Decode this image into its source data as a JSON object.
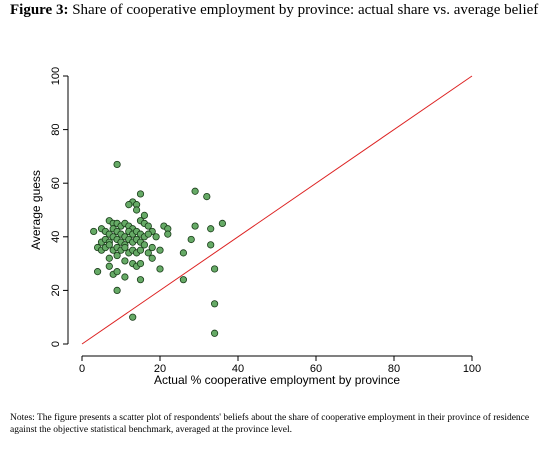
{
  "figure": {
    "label": "Figure 3:",
    "title": "Share of cooperative employment by province: actual share vs. average belief",
    "notes": "Notes: The figure presents a scatter plot of respondents' beliefs about the share of cooperative employment in their province of residence against the objective statistical benchmark, averaged at the province level."
  },
  "chart_data": {
    "type": "scatter",
    "xlabel": "Actual % cooperative employment by province",
    "ylabel": "Average guess",
    "xlim": [
      0,
      100
    ],
    "ylim": [
      0,
      100
    ],
    "x_ticks": [
      "0",
      "20",
      "40",
      "60",
      "80",
      "100"
    ],
    "y_ticks": [
      "0",
      "20",
      "40",
      "60",
      "80",
      "100"
    ],
    "grid": false,
    "point_color": "#66aa66",
    "line_color": "#dd2222",
    "reference_line": {
      "x": [
        0,
        100
      ],
      "y": [
        0,
        100
      ]
    },
    "series": [
      {
        "points": [
          [
            9,
            67
          ],
          [
            15,
            56
          ],
          [
            13,
            53
          ],
          [
            14,
            52
          ],
          [
            12,
            52
          ],
          [
            14,
            50
          ],
          [
            16,
            48
          ],
          [
            29,
            57
          ],
          [
            32,
            55
          ],
          [
            36,
            45
          ],
          [
            33,
            43
          ],
          [
            29,
            44
          ],
          [
            28,
            39
          ],
          [
            33,
            37
          ],
          [
            7,
            46
          ],
          [
            8,
            45
          ],
          [
            9,
            45
          ],
          [
            10,
            44
          ],
          [
            11,
            45
          ],
          [
            12,
            44
          ],
          [
            13,
            43
          ],
          [
            15,
            46
          ],
          [
            16,
            45
          ],
          [
            17,
            44
          ],
          [
            18,
            42
          ],
          [
            21,
            44
          ],
          [
            22,
            43
          ],
          [
            22,
            41
          ],
          [
            3,
            42
          ],
          [
            5,
            43
          ],
          [
            6,
            42
          ],
          [
            7,
            41
          ],
          [
            8,
            43
          ],
          [
            9,
            42
          ],
          [
            10,
            41
          ],
          [
            11,
            40
          ],
          [
            12,
            42
          ],
          [
            13,
            41
          ],
          [
            14,
            42
          ],
          [
            15,
            41
          ],
          [
            16,
            40
          ],
          [
            17,
            41
          ],
          [
            19,
            40
          ],
          [
            5,
            38
          ],
          [
            6,
            39
          ],
          [
            7,
            38
          ],
          [
            8,
            40
          ],
          [
            9,
            39
          ],
          [
            10,
            38
          ],
          [
            11,
            37
          ],
          [
            12,
            39
          ],
          [
            13,
            38
          ],
          [
            14,
            39
          ],
          [
            15,
            38
          ],
          [
            16,
            37
          ],
          [
            18,
            36
          ],
          [
            4,
            36
          ],
          [
            5,
            35
          ],
          [
            6,
            36
          ],
          [
            7,
            37
          ],
          [
            8,
            35
          ],
          [
            9,
            36
          ],
          [
            10,
            35
          ],
          [
            11,
            36
          ],
          [
            12,
            34
          ],
          [
            13,
            35
          ],
          [
            14,
            34
          ],
          [
            15,
            35
          ],
          [
            17,
            34
          ],
          [
            20,
            35
          ],
          [
            7,
            32
          ],
          [
            9,
            33
          ],
          [
            11,
            31
          ],
          [
            13,
            30
          ],
          [
            14,
            29
          ],
          [
            15,
            30
          ],
          [
            18,
            32
          ],
          [
            20,
            28
          ],
          [
            4,
            27
          ],
          [
            7,
            29
          ],
          [
            8,
            26
          ],
          [
            9,
            27
          ],
          [
            11,
            25
          ],
          [
            15,
            24
          ],
          [
            26,
            34
          ],
          [
            26,
            24
          ],
          [
            34,
            28
          ],
          [
            9,
            20
          ],
          [
            13,
            10
          ],
          [
            34,
            15
          ],
          [
            34,
            4
          ]
        ]
      }
    ]
  }
}
